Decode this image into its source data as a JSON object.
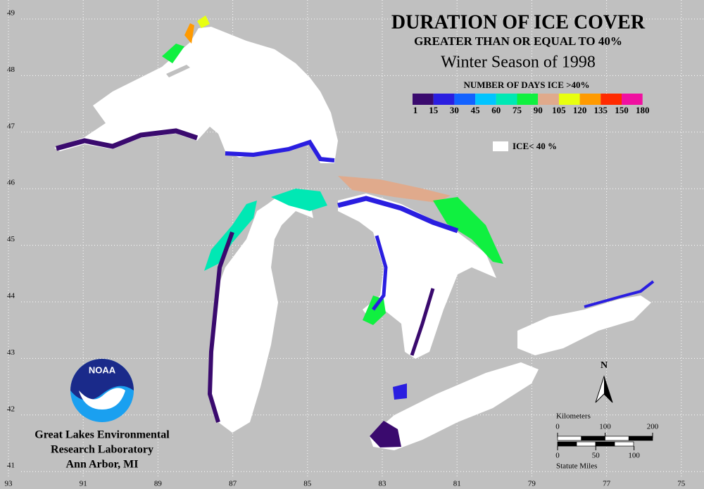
{
  "header": {
    "title": "DURATION OF ICE COVER",
    "subtitle": "GREATER THAN OR EQUAL TO 40%",
    "season": "Winter Season of 1998"
  },
  "legend": {
    "title": "NUMBER OF DAYS ICE >40%",
    "labels": [
      1,
      15,
      30,
      45,
      60,
      75,
      90,
      105,
      120,
      135,
      150,
      180
    ],
    "colors": [
      "#3a0a6e",
      "#2a1ee0",
      "#1262ff",
      "#00c4ff",
      "#00e8b4",
      "#10f040",
      "#e0aa8c",
      "#e8ff10",
      "#ff9a00",
      "#ff2a00",
      "#f010a0"
    ],
    "ice_below_label": "ICE< 40 %"
  },
  "grid": {
    "latitudes": [
      49,
      48,
      47,
      46,
      45,
      44,
      43,
      42,
      41
    ],
    "longitudes": [
      93,
      91,
      89,
      87,
      85,
      83,
      81,
      79,
      77,
      75
    ]
  },
  "north_label": "N",
  "scale": {
    "km_title": "Kilometers",
    "km_ticks": [
      0,
      100,
      200
    ],
    "mi_title": "Statute Miles",
    "mi_ticks": [
      0,
      50,
      100
    ]
  },
  "logo": {
    "text": "NOAA"
  },
  "credit": [
    "Great Lakes Environmental",
    "Research Laboratory",
    "Ann Arbor, MI"
  ]
}
